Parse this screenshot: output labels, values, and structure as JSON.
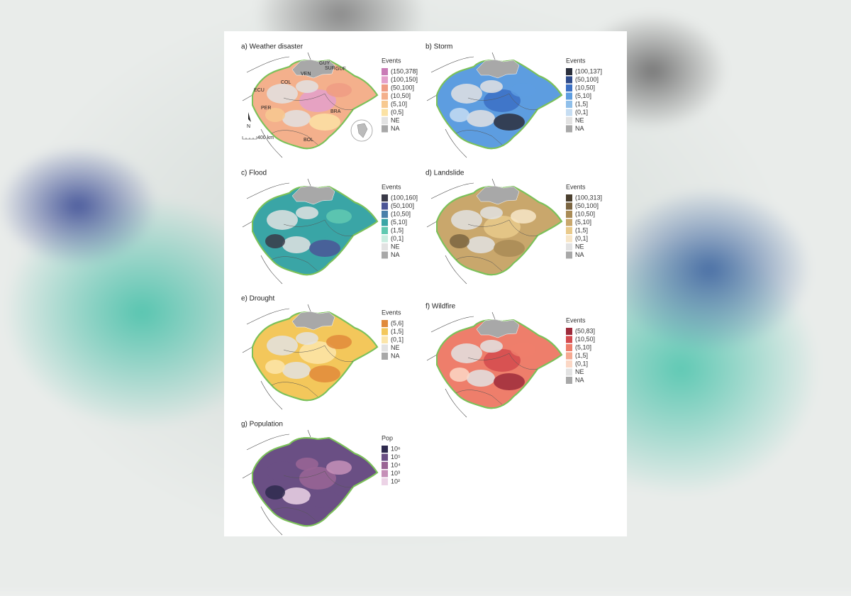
{
  "panels": [
    {
      "title": "a) Weather disaster",
      "legend_title": "Events",
      "legend": [
        {
          "label": "(150,378]",
          "color": "#c97bb6"
        },
        {
          "label": "(100,150]",
          "color": "#e3a0cb"
        },
        {
          "label": "(50,100]",
          "color": "#ef9c84"
        },
        {
          "label": "(10,50]",
          "color": "#f4b08c"
        },
        {
          "label": "(5,10]",
          "color": "#f7c990"
        },
        {
          "label": "(0,5]",
          "color": "#fbe2a4"
        },
        {
          "label": "NE",
          "color": "#e2e2e2"
        },
        {
          "label": "NA",
          "color": "#a8a8a8"
        }
      ]
    },
    {
      "title": "b) Storm",
      "legend_title": "Events",
      "legend": [
        {
          "label": "(100,137]",
          "color": "#2b2f3c"
        },
        {
          "label": "(50,100]",
          "color": "#2f4b8a"
        },
        {
          "label": "(10,50]",
          "color": "#3b70c4"
        },
        {
          "label": "(5,10]",
          "color": "#5d9de0"
        },
        {
          "label": "(1,5]",
          "color": "#8fbfea"
        },
        {
          "label": "(0,1]",
          "color": "#c6ddf2"
        },
        {
          "label": "NE",
          "color": "#e2e2e2"
        },
        {
          "label": "NA",
          "color": "#a8a8a8"
        }
      ]
    },
    {
      "title": "c) Flood",
      "legend_title": "Events",
      "legend": [
        {
          "label": "(100,160]",
          "color": "#3a3a48"
        },
        {
          "label": "(50,100]",
          "color": "#4b5596"
        },
        {
          "label": "(10,50]",
          "color": "#4a80a9"
        },
        {
          "label": "(5,10]",
          "color": "#3aa5a6"
        },
        {
          "label": "(1,5]",
          "color": "#61c9b1"
        },
        {
          "label": "(0,1]",
          "color": "#c9ede0"
        },
        {
          "label": "NE",
          "color": "#e2e2e2"
        },
        {
          "label": "NA",
          "color": "#a8a8a8"
        }
      ]
    },
    {
      "title": "d) Landslide",
      "legend_title": "Events",
      "legend": [
        {
          "label": "(100,313]",
          "color": "#4a3f2e"
        },
        {
          "label": "(50,100]",
          "color": "#7b6541"
        },
        {
          "label": "(10,50]",
          "color": "#a98b56"
        },
        {
          "label": "(5,10]",
          "color": "#c9a76c"
        },
        {
          "label": "(1,5]",
          "color": "#e9ca8b"
        },
        {
          "label": "(0,1]",
          "color": "#f7e6c8"
        },
        {
          "label": "NE",
          "color": "#e2e2e2"
        },
        {
          "label": "NA",
          "color": "#a8a8a8"
        }
      ]
    },
    {
      "title": "e) Drought",
      "legend_title": "Events",
      "legend": [
        {
          "label": "(5,6]",
          "color": "#e08a3b"
        },
        {
          "label": "(1,5]",
          "color": "#f3c75b"
        },
        {
          "label": "(0,1]",
          "color": "#fbe5aa"
        },
        {
          "label": "NE",
          "color": "#e2e2e2"
        },
        {
          "label": "NA",
          "color": "#a8a8a8"
        }
      ]
    },
    {
      "title": "f) Wildfire",
      "legend_title": "Events",
      "legend": [
        {
          "label": "(50,83]",
          "color": "#9e2b3b"
        },
        {
          "label": "(10,50]",
          "color": "#d44a4e"
        },
        {
          "label": "(5,10]",
          "color": "#ee7e6b"
        },
        {
          "label": "(1,5]",
          "color": "#f5a991"
        },
        {
          "label": "(0,1]",
          "color": "#fbd7c5"
        },
        {
          "label": "NE",
          "color": "#e2e2e2"
        },
        {
          "label": "NA",
          "color": "#a8a8a8"
        }
      ]
    },
    {
      "title": "g) Population",
      "legend_title": "Pop",
      "legend": [
        {
          "label": "10⁶",
          "color": "#2e2a4e"
        },
        {
          "label": "10⁵",
          "color": "#6a4f84"
        },
        {
          "label": "10⁴",
          "color": "#9a6595"
        },
        {
          "label": "10³",
          "color": "#c690b8"
        },
        {
          "label": "10²",
          "color": "#ecd3e6"
        }
      ]
    }
  ],
  "map_labels": [
    "GUY",
    "SUR",
    "GUF",
    "VEN",
    "COL",
    "ECU",
    "PER",
    "BRA",
    "BOL"
  ],
  "north": "N",
  "scale": "400 km"
}
